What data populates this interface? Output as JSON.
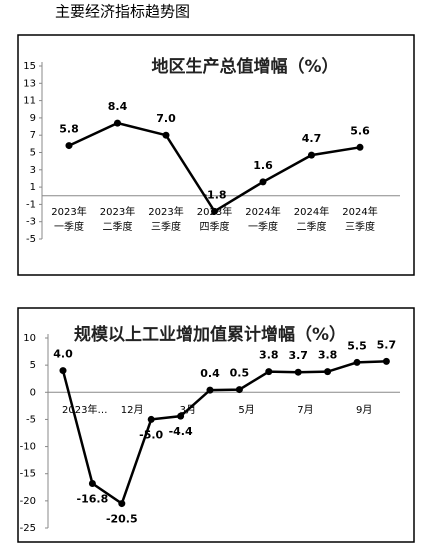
{
  "page_title": "主要经济指标趋势图",
  "chart_data": [
    {
      "type": "line",
      "title": "地区生产总值增幅（%）",
      "categories": [
        "2023年\n一季度",
        "2023年\n二季度",
        "2023年\n三季度",
        "2023年\n四季度",
        "2024年\n一季度",
        "2024年\n二季度",
        "2024年\n三季度"
      ],
      "values": [
        5.8,
        8.4,
        7.0,
        -1.8,
        1.6,
        4.7,
        5.6
      ],
      "value_labels": [
        "5.8",
        "8.4",
        "7.0",
        "-1.8",
        "1.6",
        "4.7",
        "5.6"
      ],
      "color": "#000000",
      "ylim": [
        -5,
        15
      ],
      "yticks": [
        -5,
        -3,
        -1,
        1,
        3,
        5,
        7,
        9,
        11,
        13,
        15
      ]
    },
    {
      "type": "line",
      "title": "规模以上工业增加值累计增幅（%）",
      "categories": [
        "2023年…",
        null,
        "12月",
        null,
        "3月",
        null,
        "5月",
        null,
        "7月",
        null,
        "9月",
        null
      ],
      "values": [
        4.0,
        -16.8,
        -20.5,
        -5.0,
        -4.4,
        0.4,
        0.5,
        3.8,
        3.7,
        3.8,
        5.5,
        5.7
      ],
      "value_labels": [
        "4.0",
        "-16.8",
        "-20.5",
        "-5.0",
        "-4.4",
        "0.4",
        "0.5",
        "3.8",
        "3.7",
        "3.8",
        "5.5",
        "5.7"
      ],
      "color": "#000000",
      "ylim": [
        -25,
        10
      ],
      "yticks": [
        -25,
        -20,
        -15,
        -10,
        -5,
        0,
        5,
        10
      ]
    }
  ]
}
